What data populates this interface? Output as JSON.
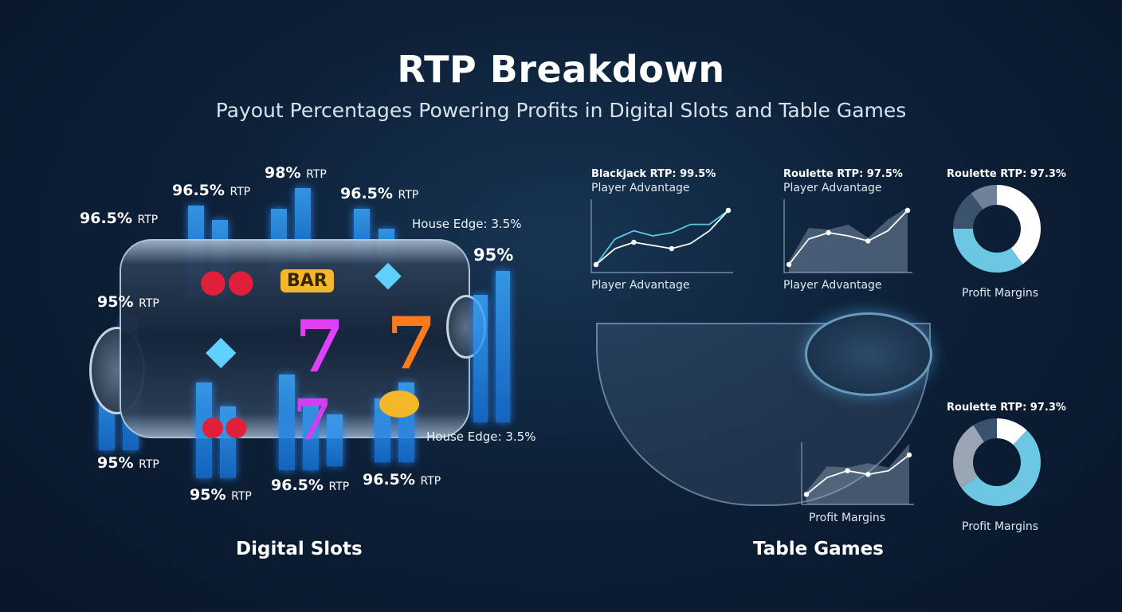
{
  "title": "RTP Breakdown",
  "subtitle": "Payout Percentages Powering Profits in Digital Slots and Table Games",
  "slots": {
    "section_label": "Digital Slots",
    "labels": [
      {
        "value": "96.5%",
        "unit": "RTP"
      },
      {
        "value": "96.5%",
        "unit": "RTP"
      },
      {
        "value": "98%",
        "unit": "RTP"
      },
      {
        "value": "96.5%",
        "unit": "RTP"
      },
      {
        "value": "95%",
        "unit": "RTP"
      },
      {
        "value": "95%",
        "unit": "RTP"
      },
      {
        "value": "95%",
        "unit": "RTP"
      },
      {
        "value": "96.5%",
        "unit": "RTP"
      },
      {
        "value": "96.5%",
        "unit": "RTP"
      },
      {
        "value": "95%",
        "unit": ""
      }
    ],
    "house_edge_top": "House Edge: 3.5%",
    "house_edge_bottom": "House Edge: 3.5%",
    "symbols": {
      "bar": "BAR",
      "seven": "7",
      "cherry": "cherry-icon",
      "diamond": "diamond-icon"
    },
    "colors": {
      "bar": "#2a8cff",
      "seven_pink": "#e040fb",
      "seven_orange": "#ff7a1a",
      "cherry": "#e0203a",
      "diamond": "#5fd0ff"
    }
  },
  "table": {
    "section_label": "Table Games",
    "charts": [
      {
        "type": "line",
        "title": "Blackjack RTP: 99.5%",
        "subtitle": "Player Advantage",
        "xlabel": "Player Advantage",
        "series": [
          {
            "color": "#5cc8e6",
            "values": [
              5,
              45,
              58,
              50,
              55,
              68,
              68,
              90
            ]
          },
          {
            "color": "#ffffff",
            "values": [
              5,
              30,
              40,
              35,
              30,
              38,
              58,
              90
            ],
            "markers": [
              0,
              2,
              4,
              7
            ]
          }
        ]
      },
      {
        "type": "area",
        "title": "Roulette RTP: 97.5%",
        "subtitle": "Player Advantage",
        "xlabel": "Player Advantage",
        "series": [
          {
            "color": "#ffffff",
            "values": [
              5,
              45,
              55,
              50,
              42,
              58,
              90
            ],
            "markers": [
              0,
              2,
              4,
              6
            ]
          }
        ]
      },
      {
        "type": "area",
        "title": "",
        "subtitle": "",
        "xlabel": "Profit Margins",
        "series": [
          {
            "color": "#ffffff",
            "values": [
              10,
              42,
              55,
              48,
              55,
              85
            ],
            "markers": [
              0,
              2,
              3,
              5
            ]
          }
        ]
      }
    ],
    "donuts": [
      {
        "title": "Roulette RTP: 97.3%",
        "label": "Profit Margins",
        "slices": [
          {
            "value": 40,
            "color": "#ffffff"
          },
          {
            "value": 35,
            "color": "#6cc7e3"
          },
          {
            "value": 15,
            "color": "#3a526d"
          },
          {
            "value": 10,
            "color": "#6f8298"
          }
        ]
      },
      {
        "title": "Roulette RTP: 97.3%",
        "label": "Profit Margins",
        "slices": [
          {
            "value": 12,
            "color": "#ffffff"
          },
          {
            "value": 53,
            "color": "#6cc7e3"
          },
          {
            "value": 26,
            "color": "#9aa6b4"
          },
          {
            "value": 9,
            "color": "#3a526d"
          }
        ]
      }
    ]
  }
}
